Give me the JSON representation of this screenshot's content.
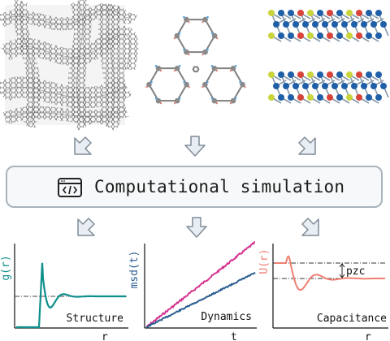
{
  "banner": {
    "label": "Computational simulation",
    "icon": "code-window-icon"
  },
  "top_images": [
    {
      "name": "porous-carbon-mesh",
      "description_icon": "carbon-network-icon"
    },
    {
      "name": "covalent-organic-framework",
      "description_icon": "hexagonal-framework-icon"
    },
    {
      "name": "layered-crystal",
      "description_icon": "layered-lattice-icon"
    }
  ],
  "colors": {
    "teal": "#0e8f8c",
    "magenta": "#d6338f",
    "navy": "#2a5d8f",
    "salmon": "#f07f72",
    "arrow_fill": "#e8eef3",
    "arrow_stroke": "#7f8c97",
    "border": "#a9b3bb"
  },
  "chart_data": [
    {
      "type": "line",
      "ylabel": "g(r)",
      "xlabel": "r",
      "annotation": "Structure",
      "series": [
        {
          "values_shape": "radial-distribution",
          "color": "#0e8f8c"
        }
      ],
      "reference_line": "dash-dot at 1.0"
    },
    {
      "type": "line",
      "ylabel": "msd(t)",
      "xlabel": "t",
      "annotation": "Dynamics",
      "series": [
        {
          "color": "#d6338f",
          "slope": "steep"
        },
        {
          "color": "#2a5d8f",
          "slope": "shallow"
        }
      ]
    },
    {
      "type": "line",
      "ylabel": "U(r)",
      "xlabel": "r",
      "annotation": "Capacitance",
      "label_pzc": "pzc",
      "series": [
        {
          "color": "#f07f72",
          "values_shape": "damped-oscillation"
        }
      ],
      "reference_lines": [
        "dash-dot upper",
        "dash-dot lower"
      ]
    }
  ]
}
